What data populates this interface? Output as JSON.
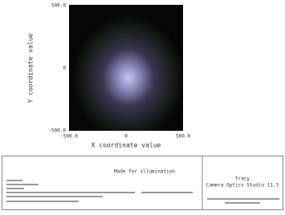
{
  "plot": {
    "x_label": "X coordinate value",
    "y_label": "Y coordinate value",
    "x_ticks": [
      "-500.0",
      "0",
      "500.0"
    ],
    "y_ticks": [
      "500.0",
      "0",
      "-500.0"
    ]
  },
  "footer": {
    "caption": "Made for illumination",
    "right_title": "Tracy",
    "right_subtitle": "Camera Optics Studio 11.3"
  }
}
